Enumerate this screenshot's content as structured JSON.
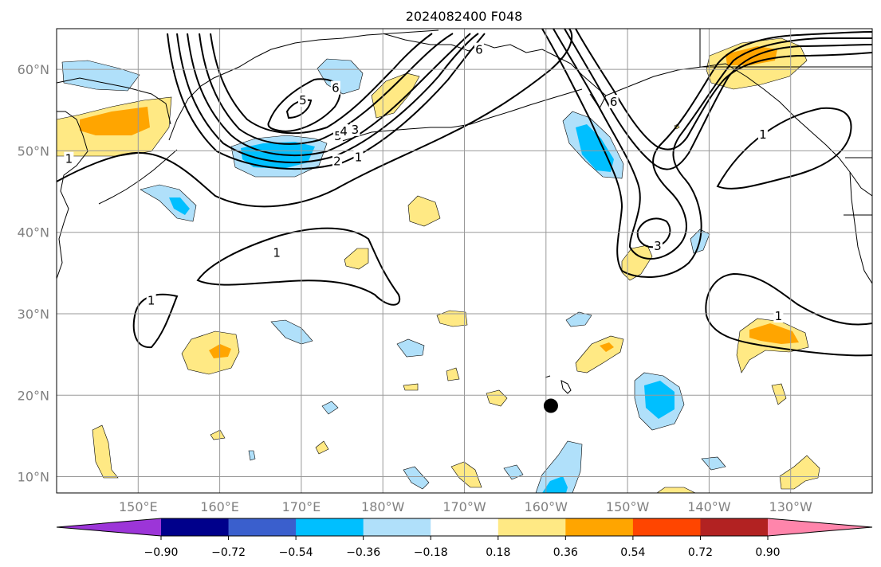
{
  "title": "2024082400 F048",
  "map": {
    "lon_range": [
      140,
      240
    ],
    "lat_range": [
      8,
      65
    ],
    "lat_ticks": [
      {
        "value": 10,
        "label": "10°N"
      },
      {
        "value": 20,
        "label": "20°N"
      },
      {
        "value": 30,
        "label": "30°N"
      },
      {
        "value": 40,
        "label": "40°N"
      },
      {
        "value": 50,
        "label": "50°N"
      },
      {
        "value": 60,
        "label": "60°N"
      }
    ],
    "lon_ticks": [
      {
        "value": 150,
        "label": "150°E"
      },
      {
        "value": 160,
        "label": "160°E"
      },
      {
        "value": 170,
        "label": "170°E"
      },
      {
        "value": 180,
        "label": "180°W"
      },
      {
        "value": 190,
        "label": "170°W"
      },
      {
        "value": 200,
        "label": "160°W"
      },
      {
        "value": 210,
        "label": "150°W"
      },
      {
        "value": 220,
        "label": "140°W"
      },
      {
        "value": 230,
        "label": "130°W"
      }
    ],
    "marker": {
      "lon": 200.6,
      "lat": 18.7,
      "color": "#000000"
    },
    "contour_labels": [
      {
        "text": "1",
        "lon": 167,
        "lat": 37.5
      },
      {
        "text": "1",
        "lon": 141.5,
        "lat": 49
      },
      {
        "text": "1",
        "lon": 151.6,
        "lat": 31.6
      },
      {
        "text": "1",
        "lon": 177,
        "lat": 49.2
      },
      {
        "text": "2",
        "lon": 174.4,
        "lat": 48.7
      },
      {
        "text": "5",
        "lon": 174.5,
        "lat": 51.8
      },
      {
        "text": "4",
        "lon": 175.2,
        "lat": 52.4
      },
      {
        "text": "3",
        "lon": 176.6,
        "lat": 52.6
      },
      {
        "text": "5",
        "lon": 170.2,
        "lat": 56.2
      },
      {
        "text": "6",
        "lon": 174.2,
        "lat": 57.7
      },
      {
        "text": "6",
        "lon": 191.8,
        "lat": 62.4
      },
      {
        "text": "6",
        "lon": 208.3,
        "lat": 56
      },
      {
        "text": "3",
        "lon": 213.7,
        "lat": 38.3
      },
      {
        "text": "1",
        "lon": 228.5,
        "lat": 29.7
      },
      {
        "text": "1",
        "lon": 226.6,
        "lat": 52
      }
    ]
  },
  "colorbar": {
    "bounds": [
      "−0.90",
      "−0.72",
      "−0.54",
      "−0.36",
      "−0.18",
      "0.18",
      "0.36",
      "0.54",
      "0.72",
      "0.90"
    ],
    "colors": [
      "#9c35d8",
      "#00008b",
      "#3a5fcd",
      "#00bfff",
      "#b0e0fa",
      "#ffffff",
      "#ffe984",
      "#ffa500",
      "#ff4500",
      "#b22222",
      "#ff85ab"
    ]
  }
}
